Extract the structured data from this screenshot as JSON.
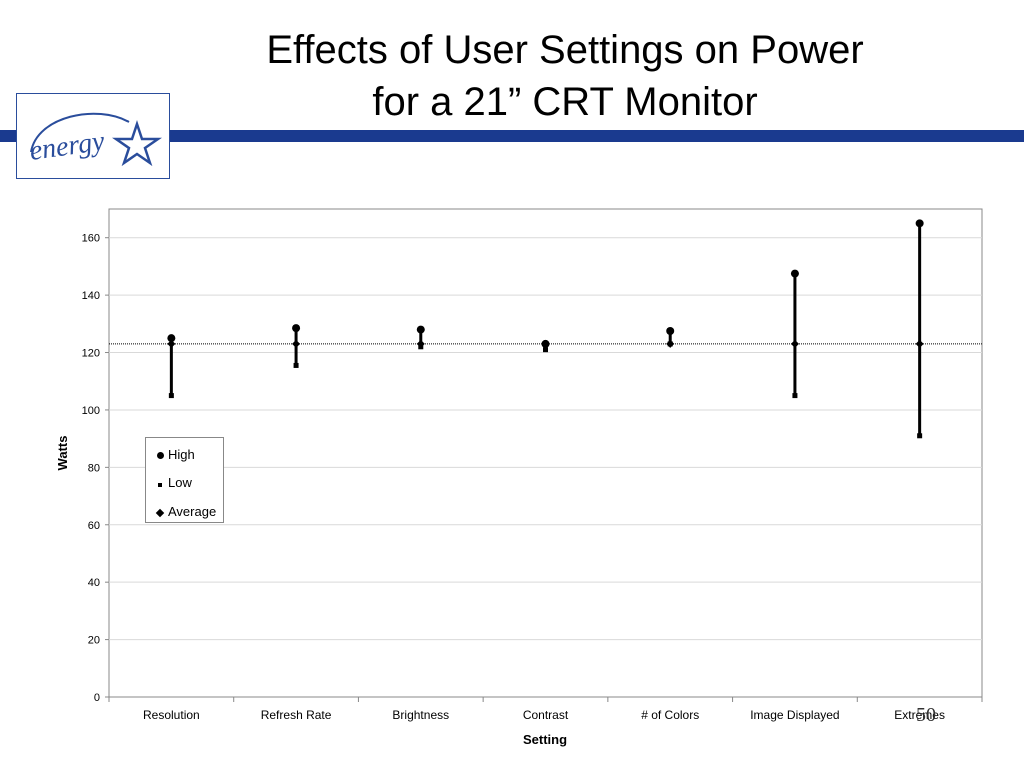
{
  "slide": {
    "title_line1": "Effects of User Settings on Power",
    "title_line2": "for a 21” CRT Monitor",
    "slide_number": "50",
    "logo_text": "energy",
    "brand_color": "#1a3a8f"
  },
  "chart_data": {
    "type": "scatter",
    "style": "high-low-average",
    "title": "",
    "xlabel": "Setting",
    "ylabel": "Watts",
    "ylim": [
      0,
      170
    ],
    "yticks": [
      0,
      20,
      40,
      60,
      80,
      100,
      120,
      140,
      160
    ],
    "categories": [
      "Resolution",
      "Refresh Rate",
      "Brightness",
      "Contrast",
      "# of Colors",
      "Image Displayed",
      "Extremes"
    ],
    "series": [
      {
        "name": "High",
        "marker": "circle",
        "values": [
          125,
          128.5,
          128,
          123,
          127.5,
          147.5,
          165
        ]
      },
      {
        "name": "Low",
        "marker": "square",
        "values": [
          105,
          115.5,
          122,
          121,
          123,
          105,
          91
        ]
      },
      {
        "name": "Average",
        "marker": "diamond",
        "values": [
          123,
          123,
          123,
          123,
          123,
          123,
          123
        ]
      }
    ],
    "reference_line": 123,
    "grid": true,
    "legend_position": "left"
  }
}
